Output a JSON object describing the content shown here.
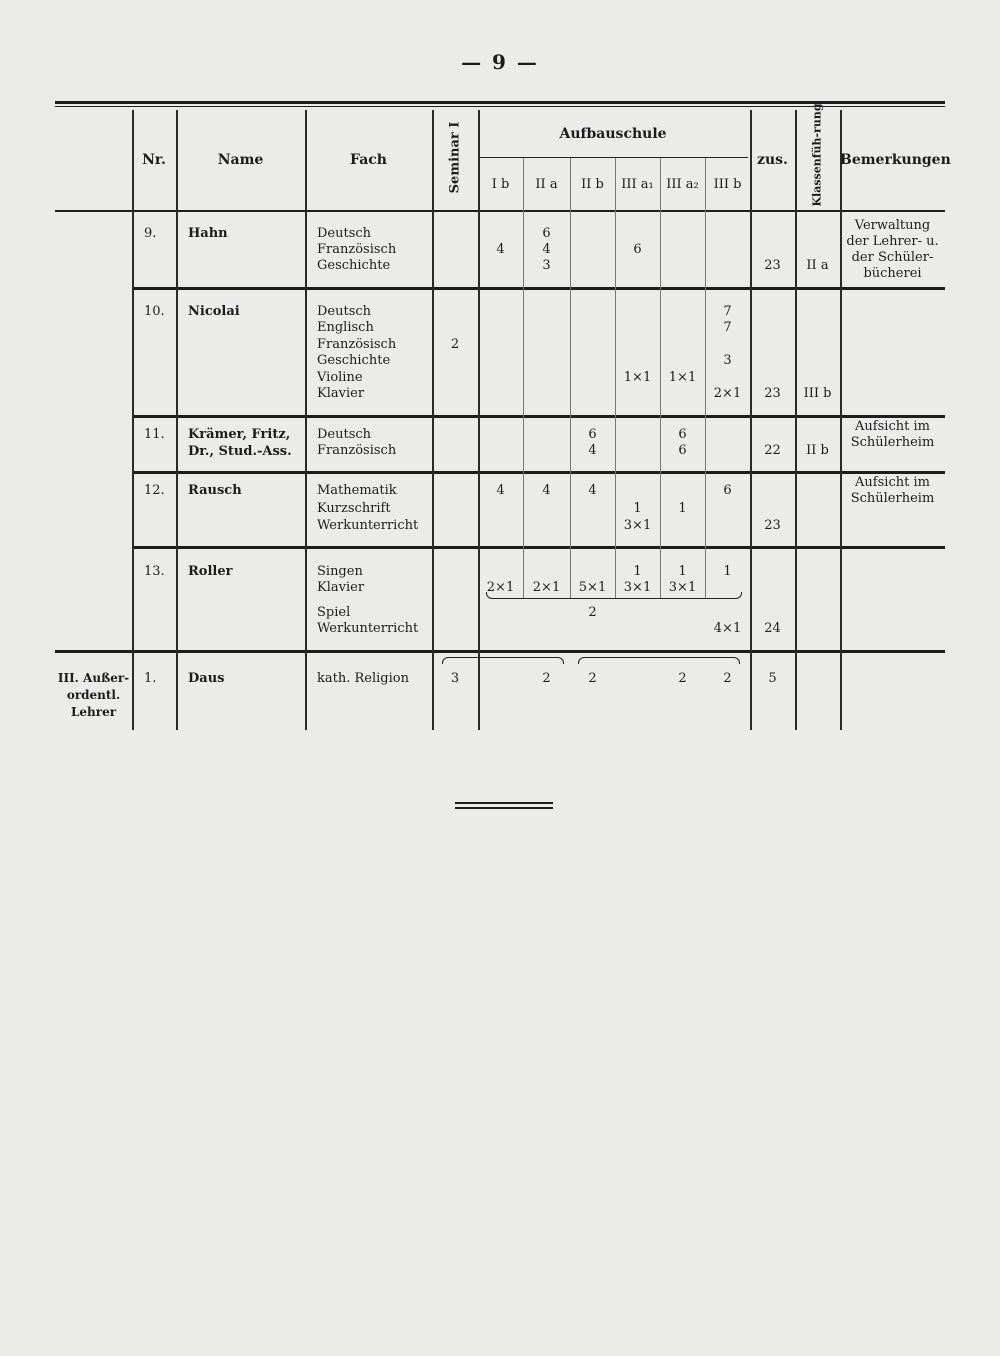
{
  "page_number": "— 9 —",
  "header": {
    "nr": "Nr.",
    "name": "Name",
    "fach": "Fach",
    "seminar": "Seminar I",
    "aufbauschule": "Aufbauschule",
    "classes": [
      "I b",
      "II a",
      "II b",
      "III a₁",
      "III a₂",
      "III b"
    ],
    "zus": "zus.",
    "klassenfuehrung": "Klassenfüh-rung",
    "bemerkungen": "Bemerkungen"
  },
  "section_label": [
    "III. Außer-",
    "ordentl.",
    "Lehrer"
  ],
  "rows": [
    {
      "nr": "9.",
      "name": [
        "Hahn"
      ],
      "subjects": [
        "Deutsch",
        "Französisch",
        "Geschichte"
      ],
      "cells": [
        {
          "col": "IIa",
          "line": 0,
          "text": "6"
        },
        {
          "col": "Ib",
          "line": 1,
          "text": "4"
        },
        {
          "col": "IIa",
          "line": 1,
          "text": "4"
        },
        {
          "col": "IIIa1",
          "line": 1,
          "text": "6"
        },
        {
          "col": "IIa",
          "line": 2,
          "text": "3"
        },
        {
          "col": "zus",
          "line": 2,
          "text": "23"
        },
        {
          "col": "klasse",
          "line": 2,
          "text": "II a"
        }
      ],
      "remarks": [
        "Verwaltung",
        "der Lehrer- u.",
        "der Schüler-",
        "bücherei"
      ]
    },
    {
      "nr": "10.",
      "name": [
        "Nicolai"
      ],
      "subjects": [
        "Deutsch",
        "Englisch",
        "Französisch",
        "Geschichte",
        "Violine",
        "Klavier"
      ],
      "cells": [
        {
          "col": "IIIb",
          "line": 0,
          "text": "7"
        },
        {
          "col": "IIIb",
          "line": 1,
          "text": "7"
        },
        {
          "col": "seminar",
          "line": 2,
          "text": "2"
        },
        {
          "col": "IIIb",
          "line": 3,
          "text": "3"
        },
        {
          "col": "IIIa1",
          "line": 4,
          "text": "1×1"
        },
        {
          "col": "IIIa2",
          "line": 4,
          "text": "1×1"
        },
        {
          "col": "IIIb",
          "line": 5,
          "text": "2×1"
        },
        {
          "col": "zus",
          "line": 5,
          "text": "23"
        },
        {
          "col": "klasse",
          "line": 5,
          "text": "III b"
        }
      ],
      "remarks": []
    },
    {
      "nr": "11.",
      "name": [
        "Krämer, Fritz,",
        "Dr., Stud.-Ass."
      ],
      "subjects": [
        "Deutsch",
        "Französisch"
      ],
      "cells": [
        {
          "col": "IIb",
          "line": 0,
          "text": "6"
        },
        {
          "col": "IIIa2",
          "line": 0,
          "text": "6"
        },
        {
          "col": "IIb",
          "line": 1,
          "text": "4"
        },
        {
          "col": "IIIa2",
          "line": 1,
          "text": "6"
        },
        {
          "col": "zus",
          "line": 1,
          "text": "22"
        },
        {
          "col": "klasse",
          "line": 1,
          "text": "II b"
        }
      ],
      "remarks": [
        "Aufsicht im",
        "Schülerheim"
      ]
    },
    {
      "nr": "12.",
      "name": [
        "Rausch"
      ],
      "subjects": [
        "Mathematik",
        "Kurzschrift",
        "Werkunterricht"
      ],
      "cells": [
        {
          "col": "Ib",
          "line": 0,
          "text": "4"
        },
        {
          "col": "IIa",
          "line": 0,
          "text": "4"
        },
        {
          "col": "IIb",
          "line": 0,
          "text": "4"
        },
        {
          "col": "IIIb",
          "line": 0,
          "text": "6"
        },
        {
          "col": "IIIa1",
          "line": 1,
          "text": "1"
        },
        {
          "col": "IIIa2",
          "line": 1,
          "text": "1"
        },
        {
          "col": "IIIa1",
          "line": 2,
          "text": "3×1"
        },
        {
          "col": "zus",
          "line": 2,
          "text": "23"
        }
      ],
      "remarks": [
        "Aufsicht im",
        "Schülerheim"
      ]
    },
    {
      "nr": "13.",
      "name": [
        "Roller"
      ],
      "subjects": [
        "Singen",
        "Klavier",
        "Spiel",
        "Werkunterricht"
      ],
      "cells": [
        {
          "col": "IIIa1",
          "line": 0,
          "text": "1"
        },
        {
          "col": "IIIa2",
          "line": 0,
          "text": "1"
        },
        {
          "col": "IIIb",
          "line": 0,
          "text": "1"
        },
        {
          "col": "Ib",
          "line": 1,
          "text": "2×1"
        },
        {
          "col": "IIa",
          "line": 1,
          "text": "2×1"
        },
        {
          "col": "IIb",
          "line": 1,
          "text": "5×1"
        },
        {
          "col": "IIIa1",
          "line": 1,
          "text": "3×1"
        },
        {
          "col": "IIIa2",
          "line": 1,
          "text": "3×1"
        },
        {
          "col": "IIb",
          "line": 2,
          "text": "2"
        },
        {
          "col": "IIIb",
          "line": 3,
          "text": "4×1"
        },
        {
          "col": "zus",
          "line": 3,
          "text": "24"
        }
      ],
      "remarks": []
    },
    {
      "nr": "1.",
      "name": [
        "Daus"
      ],
      "subjects": [
        "kath. Religion"
      ],
      "cells": [
        {
          "col": "seminar",
          "line": 0,
          "text": "3"
        },
        {
          "col": "IIa",
          "line": 0,
          "text": "2"
        },
        {
          "col": "IIb",
          "line": 0,
          "text": "2"
        },
        {
          "col": "IIIa2",
          "line": 0,
          "text": "2"
        },
        {
          "col": "IIIb",
          "line": 0,
          "text": "2"
        },
        {
          "col": "zus",
          "line": 0,
          "text": "5"
        }
      ],
      "remarks": []
    }
  ]
}
